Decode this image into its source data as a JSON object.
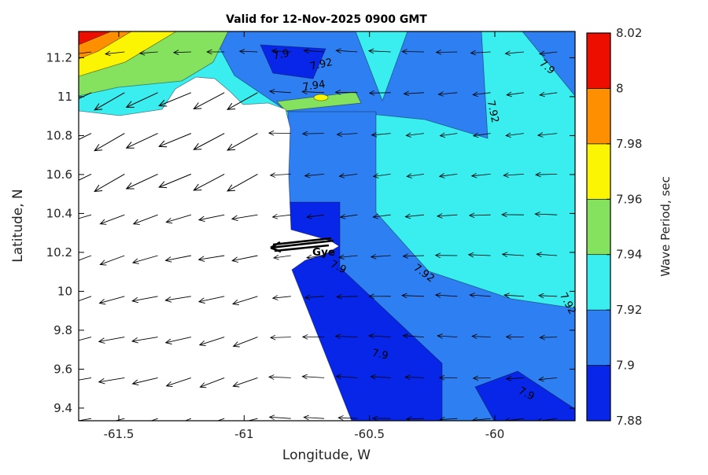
{
  "title": "Valid for 12-Nov-2025 0900 GMT",
  "axes": {
    "xlabel": "Longitude, W",
    "ylabel": "Latitude, N",
    "xlim": [
      -61.66,
      -59.68
    ],
    "ylim": [
      9.335,
      11.335
    ],
    "x_ticks": [
      {
        "value": -61.5,
        "label": "-61.5"
      },
      {
        "value": -61,
        "label": "-61"
      },
      {
        "value": -60.5,
        "label": "-60.5"
      },
      {
        "value": -60,
        "label": "-60"
      }
    ],
    "y_ticks": [
      {
        "value": 11.2,
        "label": "11.2"
      },
      {
        "value": 11,
        "label": "11"
      },
      {
        "value": 10.8,
        "label": "10.8"
      },
      {
        "value": 10.6,
        "label": "10.6"
      },
      {
        "value": 10.4,
        "label": "10.4"
      },
      {
        "value": 10.2,
        "label": "10.2"
      },
      {
        "value": 10,
        "label": "10"
      },
      {
        "value": 9.8,
        "label": "9.8"
      },
      {
        "value": 9.6,
        "label": "9.6"
      },
      {
        "value": 9.4,
        "label": "9.4"
      }
    ]
  },
  "colors": {
    "deep_blue": "#0726E8",
    "blue": "#2E80F2",
    "cyan": "#3AEDEF",
    "green": "#84E25F",
    "yellow": "#FBF504",
    "orange": "#FD8F00",
    "red": "#EE0E00",
    "land": "#FFFFFF"
  },
  "colorbar": {
    "label": "Wave Period, sec",
    "ticks": [
      "7.88",
      "7.9",
      "7.92",
      "7.94",
      "7.96",
      "7.98",
      "8",
      "8.02"
    ],
    "band_colors": [
      "#0726E8",
      "#2E80F2",
      "#3AEDEF",
      "#84E25F",
      "#FBF504",
      "#FD8F00",
      "#EE0E00"
    ]
  },
  "chart_data": {
    "type": "heatmap",
    "subtype": "filled-contour-map-with-quiver",
    "variable": "Wave Period, sec",
    "valid_time": "12-Nov-2025 0900 GMT",
    "value_range": [
      7.88,
      8.02
    ],
    "contour_levels": [
      7.88,
      7.9,
      7.92,
      7.94,
      7.96,
      7.98,
      8,
      8.02
    ],
    "regions": [
      {
        "band": "8.00-8.02",
        "color": "red",
        "where": "extreme northwest corner"
      },
      {
        "band": "7.98-8.00",
        "color": "orange",
        "where": "northwest corner"
      },
      {
        "band": "7.96-7.98",
        "color": "yellow",
        "where": "northwest corner wedge"
      },
      {
        "band": "7.94-7.96",
        "color": "green",
        "where": "northwest area and thin strip along north coast of land"
      },
      {
        "band": "7.92-7.94",
        "color": "cyan",
        "where": "most of the central and eastern offshore area"
      },
      {
        "band": "7.90-7.92",
        "color": "blue",
        "where": "northern strip, northeast corner, band along east coast and diagonal band to southeast"
      },
      {
        "band": "7.88-7.90",
        "color": "deep_blue",
        "where": "patch near 11.15N -60.8W, coastal patch near 10.2N, bottom-center wedge, southeast corner"
      },
      {
        "band": "land",
        "color": "white",
        "where": "island landmass in west/southwest (no data)"
      }
    ],
    "contour_labels": [
      {
        "text": "7.9",
        "level": 7.9,
        "lon": -60.85,
        "lat": 11.2,
        "rot": -12
      },
      {
        "text": "7.92",
        "level": 7.92,
        "lon": -60.69,
        "lat": 11.15,
        "rot": -12
      },
      {
        "text": "7.94",
        "level": 7.94,
        "lon": -60.72,
        "lat": 11.04,
        "rot": -8
      },
      {
        "text": "7.92",
        "level": 7.92,
        "lon": -60.02,
        "lat": 10.92,
        "rot": 78
      },
      {
        "text": "7.9",
        "level": 7.9,
        "lon": -59.8,
        "lat": 11.14,
        "rot": 40
      },
      {
        "text": "7.92",
        "level": 7.92,
        "lon": -60.29,
        "lat": 10.08,
        "rot": 36
      },
      {
        "text": "7.9",
        "level": 7.9,
        "lon": -60.63,
        "lat": 10.11,
        "rot": 26
      },
      {
        "text": "7.92",
        "level": 7.92,
        "lon": -59.72,
        "lat": 9.93,
        "rot": 62
      },
      {
        "text": "7.9",
        "level": 7.9,
        "lon": -60.46,
        "lat": 9.66,
        "rot": 12
      },
      {
        "text": "7.9",
        "level": 7.9,
        "lon": -59.88,
        "lat": 9.46,
        "rot": 28
      }
    ],
    "quiver": {
      "symbol": "arrows",
      "meaning": "wave direction",
      "general_direction": "westward (arrow heads point left; southwest tilt over the land/lower-left area)",
      "grid": {
        "cols": 15,
        "rows": 10
      }
    },
    "annotations": [
      {
        "text": "Gye",
        "lon": -60.69,
        "lat": 10.21,
        "note": "bold black streak of overlapping arrows at the coast"
      }
    ]
  }
}
